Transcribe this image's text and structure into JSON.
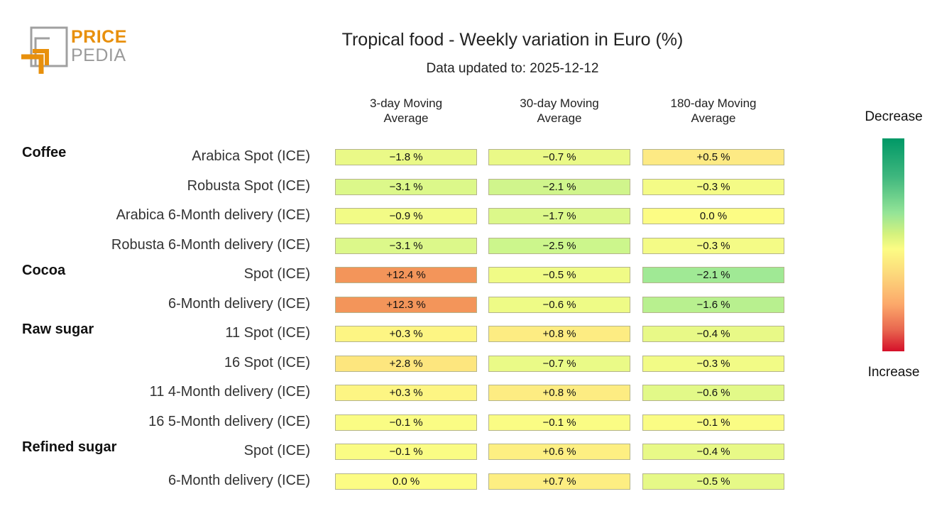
{
  "logo": {
    "line1": "PRICE",
    "line2": "PEDIA"
  },
  "header": {
    "title": "Tropical food - Weekly variation in Euro (%)",
    "subtitle": "Data updated to: 2025-12-12"
  },
  "legend": {
    "top_label": "Decrease",
    "bottom_label": "Increase"
  },
  "chart_data": {
    "type": "heatmap",
    "title": "Tropical food - Weekly variation in Euro (%)",
    "subtitle": "Data updated to: 2025-12-12",
    "columns": [
      "3-day Moving Average",
      "30-day Moving Average",
      "180-day Moving Average"
    ],
    "column_labels": [
      {
        "line1": "3-day Moving",
        "line2": "Average"
      },
      {
        "line1": "30-day Moving",
        "line2": "Average"
      },
      {
        "line1": "180-day Moving",
        "line2": "Average"
      }
    ],
    "unit": "%",
    "colorscale": {
      "decrease": "#009866",
      "neutral": "#fcfc84",
      "increase": "#d5102a"
    },
    "groups": [
      {
        "name": "Coffee",
        "rows": [
          {
            "label": "Arabica Spot (ICE)",
            "values": [
              -1.8,
              -0.7,
              0.5
            ],
            "display": [
              "−1.8 %",
              "−0.7 %",
              "+0.5 %"
            ],
            "colors": [
              "#eaf987",
              "#eaf987",
              "#fdea84"
            ]
          },
          {
            "label": "Robusta Spot (ICE)",
            "values": [
              -3.1,
              -2.1,
              -0.3
            ],
            "display": [
              "−3.1 %",
              "−2.1 %",
              "−0.3 %"
            ],
            "colors": [
              "#dcf88a",
              "#d0f58c",
              "#f4fb86"
            ]
          },
          {
            "label": "Arabica 6-Month delivery (ICE)",
            "values": [
              -0.9,
              -1.7,
              0.0
            ],
            "display": [
              "−0.9 %",
              "−1.7 %",
              "0.0 %"
            ],
            "colors": [
              "#f2fb86",
              "#dcf88a",
              "#fcfc84"
            ]
          },
          {
            "label": "Robusta 6-Month delivery (ICE)",
            "values": [
              -3.1,
              -2.5,
              -0.3
            ],
            "display": [
              "−3.1 %",
              "−2.5 %",
              "−0.3 %"
            ],
            "colors": [
              "#dcf88a",
              "#ccf68c",
              "#f4fb86"
            ]
          }
        ]
      },
      {
        "name": "Cocoa",
        "rows": [
          {
            "label": "Spot (ICE)",
            "values": [
              12.4,
              -0.5,
              -2.1
            ],
            "display": [
              "+12.4 %",
              "−0.5 %",
              "−2.1 %"
            ],
            "colors": [
              "#f3955a",
              "#f0fb86",
              "#a0e995"
            ]
          },
          {
            "label": "6-Month delivery (ICE)",
            "values": [
              12.3,
              -0.6,
              -1.6
            ],
            "display": [
              "+12.3 %",
              "−0.6 %",
              "−1.6 %"
            ],
            "colors": [
              "#f3955a",
              "#eefb86",
              "#b8f08f"
            ]
          }
        ]
      },
      {
        "name": "Raw sugar",
        "rows": [
          {
            "label": "11 Spot (ICE)",
            "values": [
              0.3,
              0.8,
              -0.4
            ],
            "display": [
              "+0.3 %",
              "+0.8 %",
              "−0.4 %"
            ],
            "colors": [
              "#fdf583",
              "#fdec82",
              "#e8f987"
            ]
          },
          {
            "label": "16 Spot (ICE)",
            "values": [
              2.8,
              -0.7,
              -0.3
            ],
            "display": [
              "+2.8 %",
              "−0.7 %",
              "−0.3 %"
            ],
            "colors": [
              "#fde67e",
              "#eafa87",
              "#f2fb86"
            ]
          },
          {
            "label": "11 4-Month delivery (ICE)",
            "values": [
              0.3,
              0.8,
              -0.6
            ],
            "display": [
              "+0.3 %",
              "+0.8 %",
              "−0.6 %"
            ],
            "colors": [
              "#fdf583",
              "#fdec82",
              "#e2f988"
            ]
          },
          {
            "label": "16 5-Month delivery (ICE)",
            "values": [
              -0.1,
              -0.1,
              -0.1
            ],
            "display": [
              "−0.1 %",
              "−0.1 %",
              "−0.1 %"
            ],
            "colors": [
              "#fafc84",
              "#fafc84",
              "#fafc84"
            ]
          }
        ]
      },
      {
        "name": "Refined sugar",
        "rows": [
          {
            "label": "Spot (ICE)",
            "values": [
              -0.1,
              0.6,
              -0.4
            ],
            "display": [
              "−0.1 %",
              "+0.6 %",
              "−0.4 %"
            ],
            "colors": [
              "#fafc84",
              "#fdef82",
              "#e8f987"
            ]
          },
          {
            "label": "6-Month delivery (ICE)",
            "values": [
              0.0,
              0.7,
              -0.5
            ],
            "display": [
              "0.0 %",
              "+0.7 %",
              "−0.5 %"
            ],
            "colors": [
              "#fcfc84",
              "#fdee82",
              "#e6f987"
            ]
          }
        ]
      }
    ]
  }
}
